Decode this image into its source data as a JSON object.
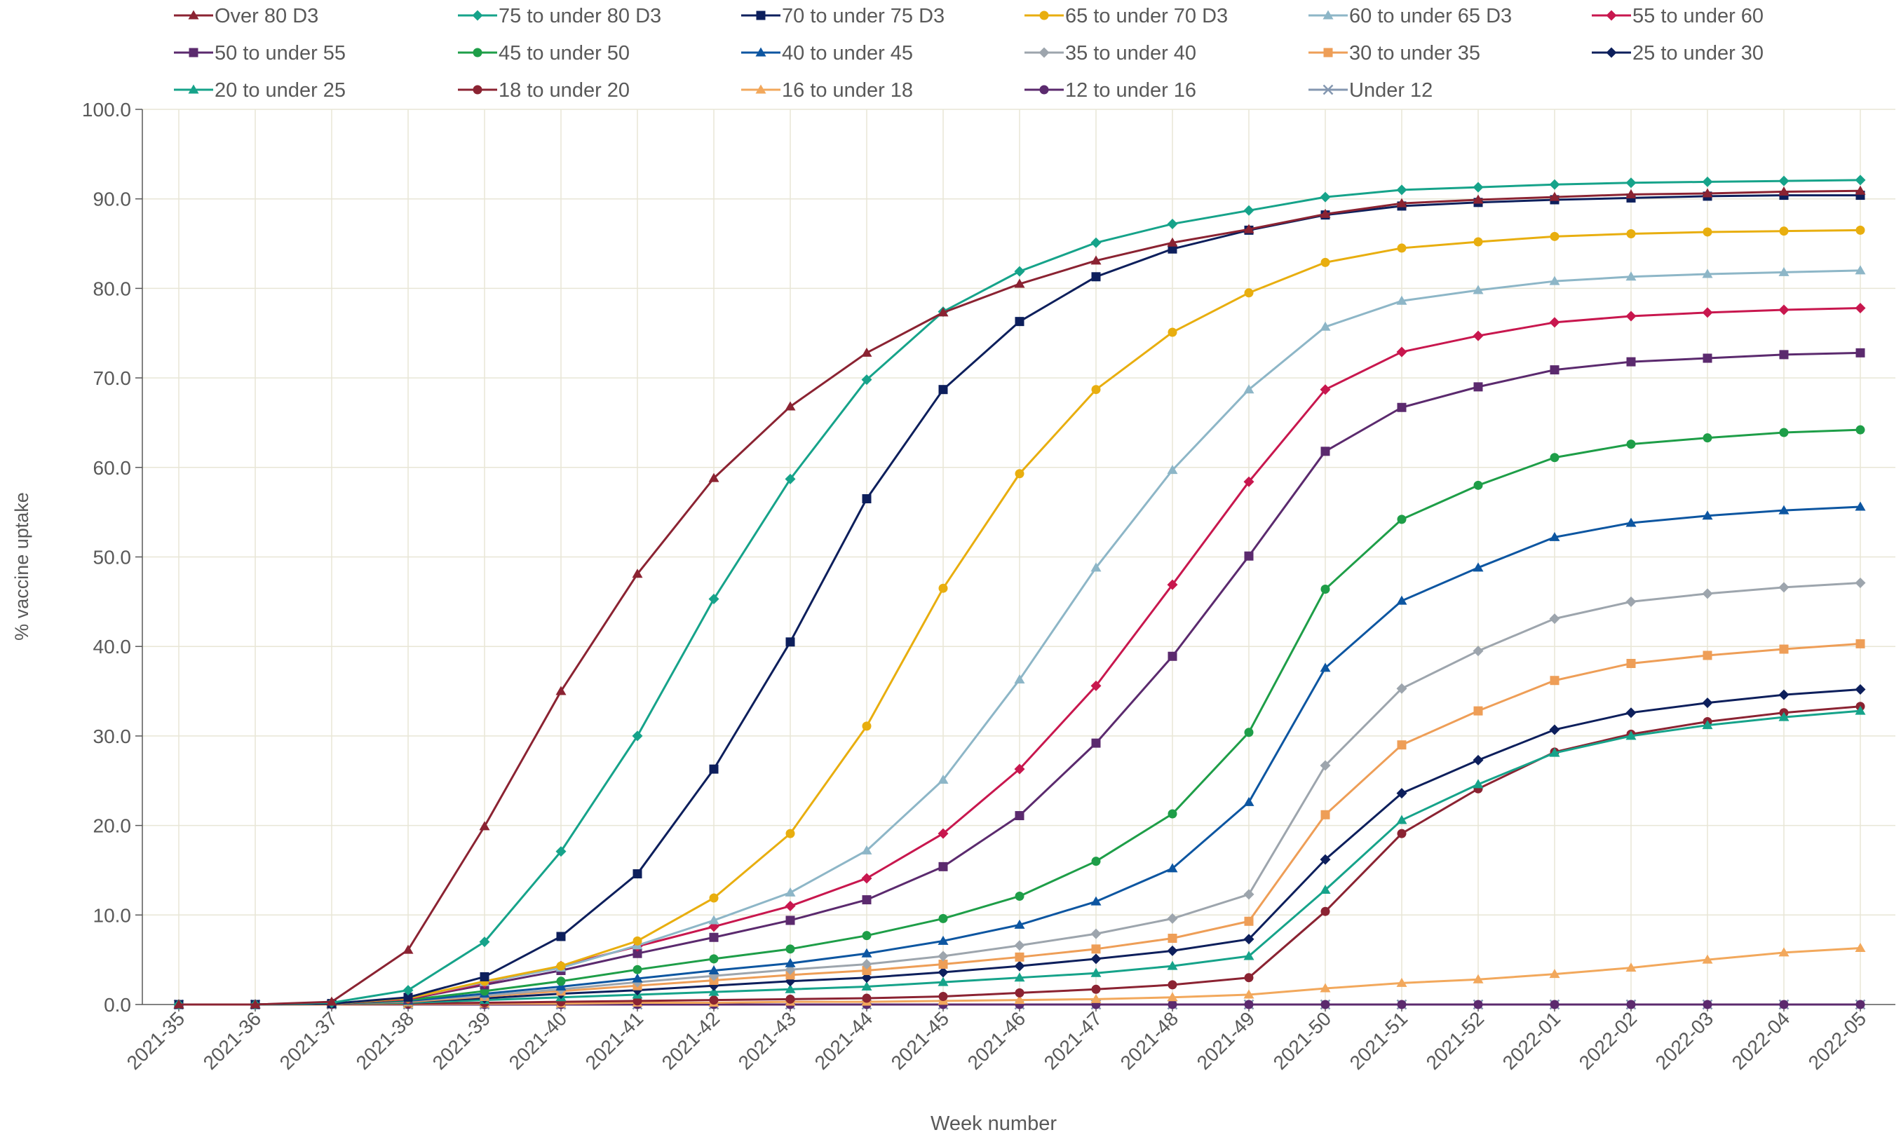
{
  "chart_data": {
    "type": "line",
    "title": "",
    "xlabel": "Week number",
    "ylabel": "% vaccine uptake",
    "ylim": [
      0,
      100
    ],
    "ytick_step": 10,
    "grid": true,
    "legend_position": "top",
    "categories": [
      "2021-35",
      "2021-36",
      "2021-37",
      "2021-38",
      "2021-39",
      "2021-40",
      "2021-41",
      "2021-42",
      "2021-43",
      "2021-44",
      "2021-45",
      "2021-46",
      "2021-47",
      "2021-48",
      "2021-49",
      "2021-50",
      "2021-51",
      "2021-52",
      "2022-01",
      "2022-02",
      "2022-03",
      "2022-04",
      "2022-05"
    ],
    "series": [
      {
        "name": "Over 80 D3",
        "color": "#8B2332",
        "marker": "triangle",
        "values": [
          0,
          0,
          0.3,
          6.1,
          19.9,
          35.0,
          48.1,
          58.8,
          66.8,
          72.8,
          77.3,
          80.5,
          83.1,
          85.1,
          86.6,
          88.3,
          89.5,
          89.9,
          90.2,
          90.5,
          90.6,
          90.8,
          90.9
        ]
      },
      {
        "name": "75 to under 80 D3",
        "color": "#16A38A",
        "marker": "diamond",
        "values": [
          0,
          0,
          0.2,
          1.6,
          7.0,
          17.1,
          30.0,
          45.3,
          58.7,
          69.8,
          77.4,
          81.9,
          85.1,
          87.2,
          88.7,
          90.2,
          91.0,
          91.3,
          91.6,
          91.8,
          91.9,
          92.0,
          92.1
        ]
      },
      {
        "name": "70 to under 75 D3",
        "color": "#0D1F5C",
        "marker": "square",
        "values": [
          0,
          0,
          0.1,
          0.8,
          3.1,
          7.6,
          14.6,
          26.3,
          40.5,
          56.5,
          68.7,
          76.3,
          81.3,
          84.4,
          86.5,
          88.2,
          89.2,
          89.6,
          89.9,
          90.1,
          90.3,
          90.4,
          90.4
        ]
      },
      {
        "name": "65 to under 70 D3",
        "color": "#E8AE0F",
        "marker": "circle",
        "values": [
          0,
          0,
          0.1,
          0.7,
          2.6,
          4.3,
          7.1,
          11.9,
          19.1,
          31.1,
          46.5,
          59.3,
          68.7,
          75.1,
          79.5,
          82.9,
          84.5,
          85.2,
          85.8,
          86.1,
          86.3,
          86.4,
          86.5
        ]
      },
      {
        "name": "60 to under 65 D3",
        "color": "#8DB6C7",
        "marker": "triangle",
        "values": [
          0,
          0,
          0.1,
          0.7,
          2.5,
          4.1,
          6.6,
          9.4,
          12.5,
          17.2,
          25.1,
          36.3,
          48.8,
          59.7,
          68.7,
          75.7,
          78.6,
          79.8,
          80.8,
          81.3,
          81.6,
          81.8,
          82.0
        ]
      },
      {
        "name": "55 to under 60",
        "color": "#C8174E",
        "marker": "diamond",
        "values": [
          0,
          0,
          0.1,
          0.6,
          2.4,
          4.3,
          6.5,
          8.7,
          11.0,
          14.1,
          19.1,
          26.3,
          35.6,
          46.9,
          58.4,
          68.7,
          72.9,
          74.7,
          76.2,
          76.9,
          77.3,
          77.6,
          77.8
        ]
      },
      {
        "name": "50 to under 55",
        "color": "#5B2A6E",
        "marker": "square",
        "values": [
          0,
          0,
          0.1,
          0.6,
          2.2,
          3.8,
          5.7,
          7.5,
          9.4,
          11.7,
          15.4,
          21.1,
          29.2,
          38.9,
          50.1,
          61.8,
          66.7,
          69.0,
          70.9,
          71.8,
          72.2,
          72.6,
          72.8
        ]
      },
      {
        "name": "45 to under 50",
        "color": "#1E9E48",
        "marker": "circle",
        "values": [
          0,
          0,
          0.1,
          0.5,
          1.5,
          2.6,
          3.9,
          5.1,
          6.2,
          7.7,
          9.6,
          12.1,
          16.0,
          21.3,
          30.4,
          46.4,
          54.2,
          58.0,
          61.1,
          62.6,
          63.3,
          63.9,
          64.2
        ]
      },
      {
        "name": "40 to under 45",
        "color": "#0D56A1",
        "marker": "triangle",
        "values": [
          0,
          0,
          0.1,
          0.4,
          1.2,
          2.0,
          2.9,
          3.8,
          4.6,
          5.7,
          7.1,
          8.9,
          11.5,
          15.2,
          22.6,
          37.6,
          45.1,
          48.8,
          52.2,
          53.8,
          54.6,
          55.2,
          55.6
        ]
      },
      {
        "name": "35 to under 40",
        "color": "#9DA5AD",
        "marker": "diamond",
        "values": [
          0,
          0,
          0.1,
          0.4,
          1.0,
          1.7,
          2.5,
          3.2,
          3.9,
          4.5,
          5.4,
          6.6,
          7.9,
          9.6,
          12.3,
          26.7,
          35.3,
          39.5,
          43.1,
          45.0,
          45.9,
          46.6,
          47.1
        ]
      },
      {
        "name": "30 to under 35",
        "color": "#EE9E57",
        "marker": "square",
        "values": [
          0,
          0,
          0.1,
          0.3,
          0.9,
          1.5,
          2.1,
          2.7,
          3.3,
          3.8,
          4.5,
          5.3,
          6.2,
          7.4,
          9.3,
          21.2,
          29.0,
          32.8,
          36.2,
          38.1,
          39.0,
          39.7,
          40.3
        ]
      },
      {
        "name": "25 to under 30",
        "color": "#0D1F5C",
        "marker": "diamond",
        "values": [
          0,
          0,
          0.1,
          0.3,
          0.7,
          1.2,
          1.6,
          2.1,
          2.6,
          3.0,
          3.6,
          4.3,
          5.1,
          6.0,
          7.3,
          16.2,
          23.6,
          27.3,
          30.7,
          32.6,
          33.7,
          34.6,
          35.2
        ]
      },
      {
        "name": "20 to under 25",
        "color": "#16A38A",
        "marker": "triangle",
        "values": [
          0,
          0,
          0.1,
          0.2,
          0.5,
          0.8,
          1.1,
          1.4,
          1.7,
          2.0,
          2.5,
          3.0,
          3.5,
          4.3,
          5.4,
          12.8,
          20.6,
          24.6,
          28.1,
          30.0,
          31.2,
          32.1,
          32.8
        ]
      },
      {
        "name": "18 to under 20",
        "color": "#8B2332",
        "marker": "circle",
        "values": [
          0,
          0,
          0.05,
          0.1,
          0.2,
          0.3,
          0.4,
          0.5,
          0.6,
          0.7,
          0.9,
          1.3,
          1.7,
          2.2,
          3.0,
          10.4,
          19.1,
          24.1,
          28.2,
          30.2,
          31.6,
          32.6,
          33.3
        ]
      },
      {
        "name": "16 to under 18",
        "color": "#F2A85C",
        "marker": "triangle",
        "values": [
          0,
          0,
          0,
          0.05,
          0.1,
          0.1,
          0.2,
          0.2,
          0.3,
          0.3,
          0.4,
          0.5,
          0.6,
          0.8,
          1.1,
          1.8,
          2.4,
          2.8,
          3.4,
          4.1,
          5.0,
          5.8,
          6.3
        ]
      },
      {
        "name": "12 to under 16",
        "color": "#5B2A6E",
        "marker": "circle",
        "values": [
          0,
          0,
          0,
          0,
          0,
          0,
          0,
          0,
          0,
          0,
          0,
          0,
          0,
          0,
          0,
          0,
          0,
          0,
          0,
          0,
          0,
          0,
          0
        ]
      },
      {
        "name": "Under 12",
        "color": "#8497B0",
        "marker": "cross",
        "values": [
          0,
          0,
          0,
          0,
          0,
          0,
          0,
          0,
          0,
          0,
          0,
          0,
          0,
          0,
          0,
          0,
          0,
          0,
          0,
          0,
          0,
          0,
          0
        ]
      }
    ]
  }
}
